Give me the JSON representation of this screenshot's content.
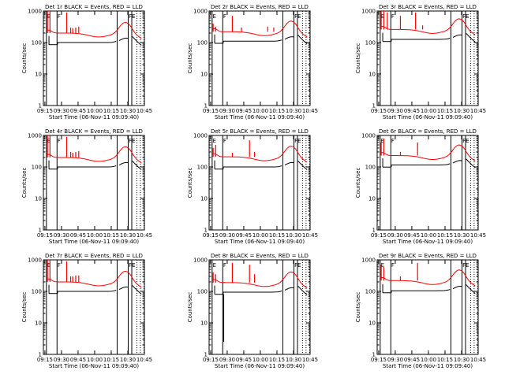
{
  "chart_data": [
    {
      "type": "line",
      "title": "Det 1r BLACK = Events, RED = LLD",
      "xlabel": "Start Time (06-Nov-11 09:09:40)",
      "ylabel": "Counts/sec",
      "xticks": [
        "09:15",
        "09:30",
        "09:45",
        "10:00",
        "10:15",
        "10:30",
        "10:45"
      ],
      "yticks": [
        "1",
        "10",
        "100",
        "1000"
      ],
      "ylim": [
        1,
        1000
      ],
      "yscale": "log",
      "events_level": 95,
      "lld_level": 200,
      "spikes": [
        [
          0.04,
          1000
        ],
        [
          0.065,
          1000
        ],
        [
          0.23,
          900
        ],
        [
          0.27,
          300
        ],
        [
          0.29,
          280
        ],
        [
          0.32,
          300
        ],
        [
          0.35,
          320
        ]
      ],
      "series": [
        {
          "name": "Events",
          "color": "#000000"
        },
        {
          "name": "LLD",
          "color": "#ff0000"
        }
      ],
      "markers": {
        "E": "E",
        "F": "F",
        "FE": "FE"
      }
    },
    {
      "type": "line",
      "title": "Det 2r BLACK = Events, RED = LLD",
      "xlabel": "Start Time (06-Nov-11 09:09:40)",
      "ylabel": "Counts/sec",
      "xticks": [
        "09:15",
        "09:30",
        "09:45",
        "10:00",
        "10:15",
        "10:30",
        "10:45"
      ],
      "yticks": [
        "1",
        "10",
        "100",
        "1000"
      ],
      "ylim": [
        1,
        1000
      ],
      "yscale": "log",
      "events_level": 105,
      "lld_level": 220,
      "spikes": [
        [
          0.04,
          400
        ],
        [
          0.065,
          320
        ],
        [
          0.23,
          700
        ],
        [
          0.32,
          300
        ],
        [
          0.58,
          320
        ],
        [
          0.64,
          300
        ]
      ],
      "series": [
        {
          "name": "Events",
          "color": "#000000"
        },
        {
          "name": "LLD",
          "color": "#ff0000"
        }
      ],
      "markers": {
        "E": "E",
        "F": "F",
        "FE": "FE"
      }
    },
    {
      "type": "line",
      "title": "Det 3r BLACK = Events, RED = LLD",
      "xlabel": "Start Time (06-Nov-11 09:09:40)",
      "ylabel": "Counts/sec",
      "xticks": [
        "09:15",
        "09:30",
        "09:45",
        "10:00",
        "10:15",
        "10:30",
        "10:45"
      ],
      "yticks": [
        "1",
        "10",
        "100",
        "1000"
      ],
      "ylim": [
        1,
        1000
      ],
      "yscale": "log",
      "events_level": 120,
      "lld_level": 260,
      "spikes": [
        [
          0.04,
          1000
        ],
        [
          0.065,
          1000
        ],
        [
          0.1,
          900
        ],
        [
          0.23,
          700
        ],
        [
          0.38,
          900
        ],
        [
          0.45,
          350
        ]
      ],
      "series": [
        {
          "name": "Events",
          "color": "#000000"
        },
        {
          "name": "LLD",
          "color": "#ff0000"
        }
      ],
      "markers": {
        "E": "E",
        "F": "F",
        "FE": "FE"
      }
    },
    {
      "type": "line",
      "title": "Det 4r BLACK = Events, RED = LLD",
      "xlabel": "Start Time (06-Nov-11 09:09:40)",
      "ylabel": "Counts/sec",
      "xticks": [
        "09:15",
        "09:30",
        "09:45",
        "10:00",
        "10:15",
        "10:30",
        "10:45"
      ],
      "yticks": [
        "1",
        "10",
        "100",
        "1000"
      ],
      "ylim": [
        1,
        1000
      ],
      "yscale": "log",
      "events_level": 95,
      "lld_level": 200,
      "spikes": [
        [
          0.04,
          1000
        ],
        [
          0.065,
          1000
        ],
        [
          0.23,
          900
        ],
        [
          0.27,
          300
        ],
        [
          0.29,
          280
        ],
        [
          0.32,
          300
        ],
        [
          0.35,
          320
        ]
      ],
      "series": [
        {
          "name": "Events",
          "color": "#000000"
        },
        {
          "name": "LLD",
          "color": "#ff0000"
        }
      ],
      "markers": {
        "E": "E",
        "F": "F",
        "FE": "FE"
      }
    },
    {
      "type": "line",
      "title": "Det 5r BLACK = Events, RED = LLD",
      "xlabel": "Start Time (06-Nov-11 09:09:40)",
      "ylabel": "Counts/sec",
      "xticks": [
        "09:15",
        "09:30",
        "09:45",
        "10:00",
        "10:15",
        "10:30",
        "10:45"
      ],
      "yticks": [
        "1",
        "10",
        "100",
        "1000"
      ],
      "ylim": [
        1,
        1000
      ],
      "yscale": "log",
      "events_level": 95,
      "lld_level": 210,
      "spikes": [
        [
          0.04,
          400
        ],
        [
          0.065,
          500
        ],
        [
          0.23,
          280
        ],
        [
          0.4,
          700
        ],
        [
          0.45,
          300
        ]
      ],
      "series": [
        {
          "name": "Events",
          "color": "#000000"
        },
        {
          "name": "LLD",
          "color": "#ff0000"
        }
      ],
      "markers": {
        "E": "E",
        "F": "F",
        "FE": "FE"
      }
    },
    {
      "type": "line",
      "title": "Det 6r BLACK = Events, RED = LLD",
      "xlabel": "Start Time (06-Nov-11 09:09:40)",
      "ylabel": "Counts/sec",
      "xticks": [
        "09:15",
        "09:30",
        "09:45",
        "10:00",
        "10:15",
        "10:30",
        "10:45"
      ],
      "yticks": [
        "1",
        "10",
        "100",
        "1000"
      ],
      "ylim": [
        1,
        1000
      ],
      "yscale": "log",
      "events_level": 110,
      "lld_level": 230,
      "spikes": [
        [
          0.04,
          600
        ],
        [
          0.065,
          800
        ],
        [
          0.23,
          300
        ],
        [
          0.4,
          600
        ]
      ],
      "series": [
        {
          "name": "Events",
          "color": "#000000"
        },
        {
          "name": "LLD",
          "color": "#ff0000"
        }
      ],
      "markers": {
        "E": "E",
        "F": "F",
        "FE": "FE"
      }
    },
    {
      "type": "line",
      "title": "Det 7r BLACK = Events, RED = LLD",
      "xlabel": "Start Time (06-Nov-11 09:09:40)",
      "ylabel": "Counts/sec",
      "xticks": [
        "09:15",
        "09:30",
        "09:45",
        "10:00",
        "10:15",
        "10:30",
        "10:45"
      ],
      "yticks": [
        "1",
        "10",
        "100",
        "1000"
      ],
      "ylim": [
        1,
        1000
      ],
      "yscale": "log",
      "events_level": 95,
      "lld_level": 200,
      "spikes": [
        [
          0.04,
          1000
        ],
        [
          0.065,
          1000
        ],
        [
          0.23,
          900
        ],
        [
          0.27,
          300
        ],
        [
          0.29,
          300
        ],
        [
          0.32,
          320
        ],
        [
          0.35,
          320
        ]
      ],
      "series": [
        {
          "name": "Events",
          "color": "#000000"
        },
        {
          "name": "LLD",
          "color": "#ff0000"
        }
      ],
      "markers": {
        "E": "E",
        "F": "F",
        "FE": "FE"
      }
    },
    {
      "type": "line",
      "title": "Det 8r BLACK = Events, RED = LLD",
      "xlabel": "Start Time (06-Nov-11 09:09:40)",
      "ylabel": "Counts/sec",
      "xticks": [
        "09:15",
        "09:30",
        "09:45",
        "10:00",
        "10:15",
        "10:30",
        "10:45"
      ],
      "yticks": [
        "1",
        "10",
        "100",
        "1000"
      ],
      "ylim": [
        1,
        1000
      ],
      "yscale": "log",
      "events_level": 90,
      "lld_level": 190,
      "spikes": [
        [
          0.04,
          400
        ],
        [
          0.065,
          350
        ],
        [
          0.23,
          800
        ],
        [
          0.4,
          700
        ],
        [
          0.45,
          350
        ]
      ],
      "dip": [
        0.145,
        2.5
      ],
      "series": [
        {
          "name": "Events",
          "color": "#000000"
        },
        {
          "name": "LLD",
          "color": "#ff0000"
        }
      ],
      "markers": {
        "E": "E",
        "F": "F",
        "FE": "FE"
      }
    },
    {
      "type": "line",
      "title": "Det 9r BLACK = Events, RED = LLD",
      "xlabel": "Start Time (06-Nov-11 09:09:40)",
      "ylabel": "Counts/sec",
      "xticks": [
        "09:15",
        "09:30",
        "09:45",
        "10:00",
        "10:15",
        "10:30",
        "10:45"
      ],
      "yticks": [
        "1",
        "10",
        "100",
        "1000"
      ],
      "ylim": [
        1,
        1000
      ],
      "yscale": "log",
      "events_level": 100,
      "lld_level": 220,
      "spikes": [
        [
          0.04,
          700
        ],
        [
          0.065,
          600
        ],
        [
          0.23,
          300
        ],
        [
          0.4,
          800
        ]
      ],
      "series": [
        {
          "name": "Events",
          "color": "#000000"
        },
        {
          "name": "LLD",
          "color": "#ff0000"
        }
      ],
      "markers": {
        "E": "E",
        "F": "F",
        "FE": "FE"
      }
    }
  ]
}
